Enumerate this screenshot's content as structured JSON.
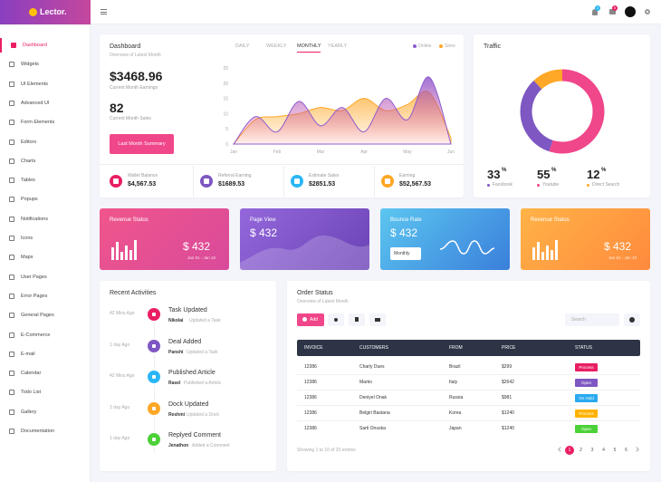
{
  "brand": "Lector.",
  "topbar": {
    "badges": [
      "3",
      "5"
    ]
  },
  "sidebar": {
    "active": 0,
    "items": [
      "Dashboard",
      "Widgets",
      "UI Elements",
      "Advanced UI",
      "Form Elements",
      "Editors",
      "Charts",
      "Tables",
      "Popups",
      "Notifications",
      "Icons",
      "Maps",
      "User Pages",
      "Error Pages",
      "General Pages",
      "E-Commerce",
      "E-mail",
      "Calendar",
      "Todo List",
      "Gallery",
      "Documentation"
    ]
  },
  "dashboard": {
    "title": "Dashboard",
    "subtitle": "Overview of Latest Month",
    "tabs": [
      "DAILY",
      "WEEKLY",
      "MONTHLY",
      "YEARLY"
    ],
    "active_tab": 2,
    "earnings": "$3468.96",
    "earnings_label": "Current Month Earnings",
    "sales": "82",
    "sales_label": "Current Month Sales",
    "button": "Last Month Summary",
    "chart": {
      "type": "area",
      "x": [
        "Jan",
        null,
        "Feb",
        null,
        "Mar",
        null,
        "Apr",
        null,
        "May",
        null,
        "Jun"
      ],
      "ylim": [
        0,
        25
      ],
      "yticks": [
        0,
        5,
        10,
        15,
        20,
        25
      ],
      "series": [
        {
          "name": "Online",
          "color": "#8e5bd0",
          "values": [
            0,
            9,
            4,
            14,
            6,
            12,
            4,
            15,
            8,
            22,
            0
          ]
        },
        {
          "name": "Store",
          "color": "#ffa726",
          "values": [
            0,
            8,
            9,
            10,
            12,
            11,
            15,
            11,
            13,
            17,
            2
          ]
        }
      ]
    },
    "stats": [
      {
        "label": "Wallet Balance",
        "value": "$4,567.53",
        "color": "#e91e63"
      },
      {
        "label": "Referral Earning",
        "value": "$1689.53",
        "color": "#7e57c2"
      },
      {
        "label": "Estimate Sales",
        "value": "$2851.53",
        "color": "#29b6f6"
      },
      {
        "label": "Earning",
        "value": "$52,567.53",
        "color": "#ffa726"
      }
    ]
  },
  "traffic": {
    "title": "Traffic",
    "segments": [
      {
        "name": "Facebook",
        "value": 33,
        "suffix": "%",
        "color": "#7e57c2"
      },
      {
        "name": "Youtube",
        "value": 55,
        "suffix": "%",
        "color": "#f0468a"
      },
      {
        "name": "Direct Search",
        "value": 12,
        "suffix": "%",
        "color": "#ffa726"
      }
    ]
  },
  "cards": [
    {
      "title": "Revenue Status",
      "value": "$ 432",
      "date": "Jan 01 - Jan 10"
    },
    {
      "title": "Page View",
      "value": "$ 432"
    },
    {
      "title": "Bounce Rate",
      "value": "$ 432",
      "select": "Monthly"
    },
    {
      "title": "Revenue Status",
      "value": "$ 432",
      "date": "Jan 01 - Jan 10"
    }
  ],
  "activities": {
    "title": "Recent Activities",
    "items": [
      {
        "time": "42 Mins Ago",
        "title": "Task Updated",
        "user": "Nikolai",
        "action": "Updated a Task",
        "color": "#e91e63"
      },
      {
        "time": "1 day Ago",
        "title": "Deal Added",
        "user": "Panshi",
        "action": "Updated a Task",
        "color": "#7e57c2"
      },
      {
        "time": "42 Mins Ago",
        "title": "Published Article",
        "user": "Rasel",
        "action": "Published a Article",
        "color": "#29b6f6"
      },
      {
        "time": "1 day Ago",
        "title": "Dock Updated",
        "user": "Reshmi",
        "action": "Updated a Dock",
        "color": "#ffa726"
      },
      {
        "time": "1 day Ago",
        "title": "Replyed Comment",
        "user": "Jenathon",
        "action": "Added a Comment",
        "color": "#4cd137"
      }
    ]
  },
  "orders": {
    "title": "Order Status",
    "subtitle": "Overview of Latest Month",
    "add": "Add",
    "search": "Search",
    "headers": [
      "INVOICE",
      "CUSTOMERS",
      "FROM",
      "PRICE",
      "STATUS"
    ],
    "rows": [
      {
        "cells": [
          "12386",
          "Charly Dues",
          "Brazil",
          "$299",
          "Process"
        ],
        "color": "#e91e63"
      },
      {
        "cells": [
          "12386",
          "Marko",
          "Italy",
          "$2642",
          "Open"
        ],
        "color": "#7e57c2"
      },
      {
        "cells": [
          "12386",
          "Deniyel Onak",
          "Russia",
          "$981",
          "On Hold"
        ],
        "color": "#29a9f0"
      },
      {
        "cells": [
          "12386",
          "Belgiri Bastana",
          "Korea",
          "$1240",
          "Process"
        ],
        "color": "#ffb300"
      },
      {
        "cells": [
          "12386",
          "Sarti Onuska",
          "Japan",
          "$1240",
          "Open"
        ],
        "color": "#4cd137"
      }
    ],
    "footer": "Showing 1 to 10 of 20 entries",
    "pages": [
      "1",
      "2",
      "3",
      "4",
      "5",
      "6"
    ],
    "active_page": 0
  }
}
